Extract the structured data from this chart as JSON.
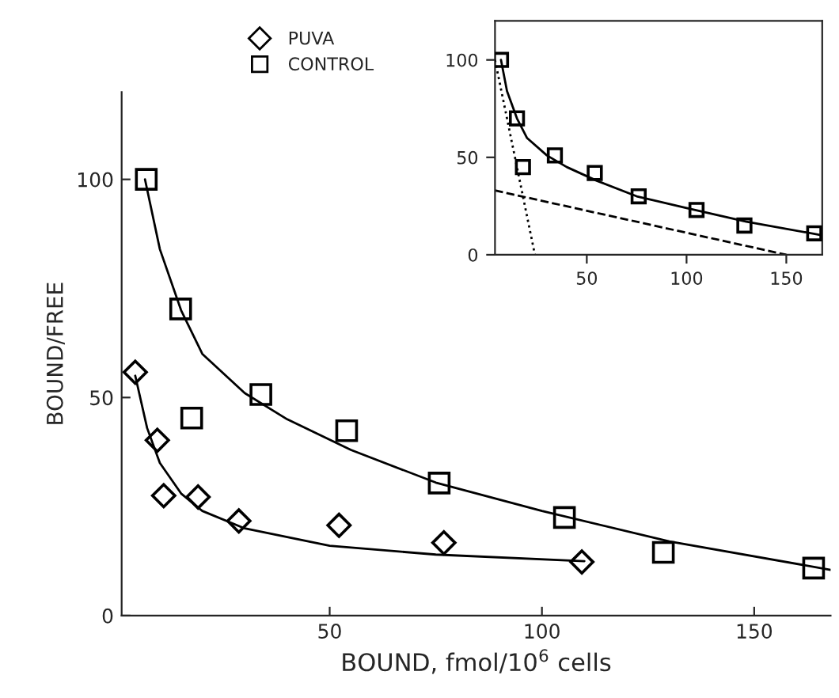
{
  "chart_data": [
    {
      "type": "scatter",
      "xlabel": "BOUND, fmol/10$^{6}$ cells",
      "ylabel": "BOUND/FREE",
      "xlim": [
        1,
        168
      ],
      "ylim": [
        0,
        120
      ],
      "xticks": [
        50,
        100,
        150
      ],
      "yticks": [
        0,
        50,
        100
      ],
      "legend": "top",
      "grid": false,
      "series": [
        {
          "name": "PUVA",
          "color": "#000000",
          "marker": "diamond",
          "x": [
            4.2,
            9.4,
            10.9,
            19,
            28.6,
            52.2,
            76.9,
            109.4
          ],
          "values": [
            55.8,
            40.2,
            27.5,
            27.2,
            21.7,
            20.7,
            16.7,
            12.3
          ]
        },
        {
          "name": "CONTROL",
          "color": "#000000",
          "marker": "square",
          "x": [
            6.8,
            14.9,
            17.5,
            33.8,
            54,
            75.8,
            105.3,
            128.6,
            164
          ],
          "values": [
            100,
            70.3,
            45.3,
            50.7,
            42.4,
            30.4,
            22.5,
            14.5,
            10.9
          ]
        },
        {
          "type": "line",
          "color": "#000000",
          "line_style": "solid",
          "x": [
            4.2,
            7,
            10,
            15,
            20,
            30,
            50,
            75,
            110
          ],
          "values": [
            55,
            43,
            35,
            28,
            24,
            20,
            16,
            14,
            12.5
          ]
        },
        {
          "type": "line",
          "color": "#000000",
          "line_style": "solid",
          "x": [
            6.5,
            10,
            15,
            20,
            30,
            40,
            55,
            75,
            100,
            130,
            168
          ],
          "values": [
            100,
            84,
            70,
            60,
            51,
            45,
            38,
            30.5,
            24,
            17,
            10.5
          ]
        }
      ]
    },
    {
      "type": "scatter",
      "xlim": [
        4,
        168
      ],
      "ylim": [
        0,
        120
      ],
      "xticks": [
        50,
        100,
        150
      ],
      "yticks": [
        0,
        50,
        100
      ],
      "grid": false,
      "series": [
        {
          "color": "#000000",
          "marker": "square",
          "x": [
            7,
            15,
            18,
            34,
            54,
            76,
            105,
            129,
            164
          ],
          "values": [
            100,
            70,
            45,
            51,
            42,
            30,
            23,
            15,
            11
          ]
        },
        {
          "type": "line",
          "color": "#000000",
          "line_style": "solid",
          "x": [
            7,
            10,
            15,
            20,
            30,
            40,
            55,
            75,
            100,
            130,
            168
          ],
          "values": [
            100,
            84,
            70,
            60,
            51,
            45,
            38,
            30,
            24,
            17,
            10
          ]
        },
        {
          "type": "line",
          "color": "#000000",
          "line_style": "dashed",
          "x": [
            4,
            150
          ],
          "values": [
            33,
            0
          ]
        },
        {
          "type": "line",
          "color": "#000000",
          "line_style": "dotted",
          "x": [
            4,
            24
          ],
          "values": [
            100,
            0
          ]
        }
      ]
    }
  ]
}
